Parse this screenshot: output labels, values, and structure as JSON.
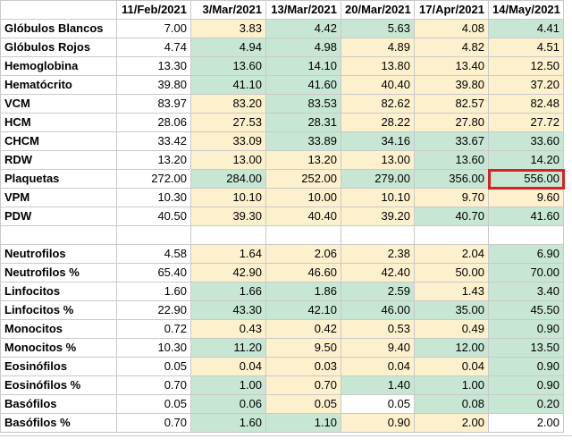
{
  "columns": [
    "",
    "11/Feb/2021",
    "3/Mar/2021",
    "13/Mar/2021",
    "20/Mar/2021",
    "17/Apr/2021",
    "14/May/2021"
  ],
  "colors": {
    "yellow": "#fdf0cd",
    "green": "#c8e6d4",
    "white": "#ffffff",
    "highlight": "#d91f1f"
  },
  "rows": [
    {
      "label": "Glóbulos Blancos",
      "values": [
        "7.00",
        "3.83",
        "4.42",
        "5.63",
        "4.08",
        "4.41"
      ],
      "fills": [
        "w",
        "y",
        "g",
        "g",
        "y",
        "g"
      ]
    },
    {
      "label": "Glóbulos Rojos",
      "values": [
        "4.74",
        "4.94",
        "4.98",
        "4.89",
        "4.82",
        "4.51"
      ],
      "fills": [
        "w",
        "g",
        "g",
        "y",
        "y",
        "y"
      ]
    },
    {
      "label": "Hemoglobina",
      "values": [
        "13.30",
        "13.60",
        "14.10",
        "13.80",
        "13.40",
        "12.50"
      ],
      "fills": [
        "w",
        "g",
        "g",
        "y",
        "y",
        "y"
      ]
    },
    {
      "label": "Hematócrito",
      "values": [
        "39.80",
        "41.10",
        "41.60",
        "40.40",
        "39.80",
        "37.20"
      ],
      "fills": [
        "w",
        "g",
        "g",
        "y",
        "y",
        "y"
      ]
    },
    {
      "label": "VCM",
      "values": [
        "83.97",
        "83.20",
        "83.53",
        "82.62",
        "82.57",
        "82.48"
      ],
      "fills": [
        "w",
        "y",
        "g",
        "y",
        "y",
        "y"
      ]
    },
    {
      "label": "HCM",
      "values": [
        "28.06",
        "27.53",
        "28.31",
        "28.22",
        "27.80",
        "27.72"
      ],
      "fills": [
        "w",
        "y",
        "g",
        "y",
        "y",
        "y"
      ]
    },
    {
      "label": "CHCM",
      "values": [
        "33.42",
        "33.09",
        "33.89",
        "34.16",
        "33.67",
        "33.60"
      ],
      "fills": [
        "w",
        "y",
        "g",
        "g",
        "g",
        "g"
      ]
    },
    {
      "label": "RDW",
      "values": [
        "13.20",
        "13.00",
        "13.20",
        "13.00",
        "13.60",
        "14.20"
      ],
      "fills": [
        "w",
        "y",
        "y",
        "y",
        "g",
        "g"
      ]
    },
    {
      "label": "Plaquetas",
      "values": [
        "272.00",
        "284.00",
        "252.00",
        "279.00",
        "356.00",
        "556.00"
      ],
      "fills": [
        "w",
        "g",
        "y",
        "g",
        "g",
        "g"
      ],
      "highlight_last": true
    },
    {
      "label": "VPM",
      "values": [
        "10.30",
        "10.10",
        "10.00",
        "10.10",
        "9.70",
        "9.60"
      ],
      "fills": [
        "w",
        "y",
        "y",
        "y",
        "y",
        "y"
      ]
    },
    {
      "label": "PDW",
      "values": [
        "40.50",
        "39.30",
        "40.40",
        "39.20",
        "40.70",
        "41.60"
      ],
      "fills": [
        "w",
        "y",
        "y",
        "y",
        "g",
        "g"
      ]
    },
    {
      "label": "",
      "values": [
        "",
        "",
        "",
        "",
        "",
        ""
      ],
      "fills": [
        "w",
        "w",
        "w",
        "w",
        "w",
        "w"
      ],
      "blank": true
    },
    {
      "label": "Neutrofilos",
      "values": [
        "4.58",
        "1.64",
        "2.06",
        "2.38",
        "2.04",
        "6.90"
      ],
      "fills": [
        "w",
        "y",
        "y",
        "y",
        "y",
        "g"
      ]
    },
    {
      "label": "Neutrofilos %",
      "values": [
        "65.40",
        "42.90",
        "46.60",
        "42.40",
        "50.00",
        "70.00"
      ],
      "fills": [
        "w",
        "y",
        "y",
        "y",
        "y",
        "g"
      ]
    },
    {
      "label": "Linfocitos",
      "values": [
        "1.60",
        "1.66",
        "1.86",
        "2.59",
        "1.43",
        "3.40"
      ],
      "fills": [
        "w",
        "g",
        "g",
        "g",
        "y",
        "g"
      ]
    },
    {
      "label": "Linfocitos %",
      "values": [
        "22.90",
        "43.30",
        "42.10",
        "46.00",
        "35.00",
        "45.50"
      ],
      "fills": [
        "w",
        "g",
        "g",
        "g",
        "g",
        "g"
      ]
    },
    {
      "label": "Monocitos",
      "values": [
        "0.72",
        "0.43",
        "0.42",
        "0.53",
        "0.49",
        "0.90"
      ],
      "fills": [
        "w",
        "y",
        "y",
        "y",
        "y",
        "g"
      ]
    },
    {
      "label": "Monocitos %",
      "values": [
        "10.30",
        "11.20",
        "9.50",
        "9.40",
        "12.00",
        "13.50"
      ],
      "fills": [
        "w",
        "g",
        "y",
        "y",
        "g",
        "g"
      ]
    },
    {
      "label": "Eosinófilos",
      "values": [
        "0.05",
        "0.04",
        "0.03",
        "0.04",
        "0.04",
        "0.90"
      ],
      "fills": [
        "w",
        "y",
        "y",
        "y",
        "y",
        "g"
      ]
    },
    {
      "label": "Eosinófilos %",
      "values": [
        "0.70",
        "1.00",
        "0.70",
        "1.40",
        "1.00",
        "0.90"
      ],
      "fills": [
        "w",
        "g",
        "y",
        "g",
        "g",
        "g"
      ]
    },
    {
      "label": "Basófilos",
      "values": [
        "0.05",
        "0.06",
        "0.05",
        "0.05",
        "0.08",
        "0.20"
      ],
      "fills": [
        "w",
        "g",
        "y",
        "w",
        "g",
        "g"
      ]
    },
    {
      "label": "Basófilos %",
      "values": [
        "0.70",
        "1.60",
        "1.10",
        "0.90",
        "2.00",
        "2.00"
      ],
      "fills": [
        "w",
        "g",
        "g",
        "y",
        "y",
        "w"
      ]
    }
  ]
}
